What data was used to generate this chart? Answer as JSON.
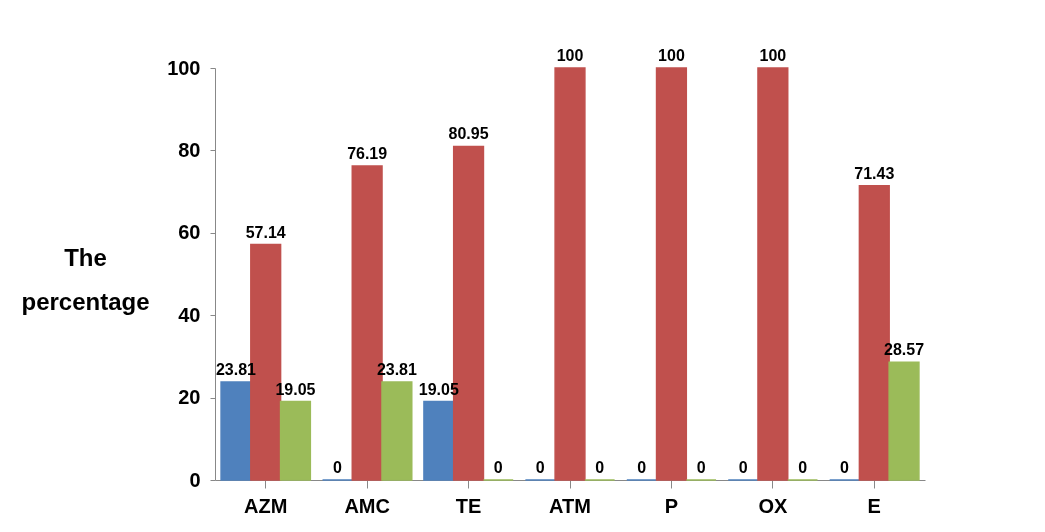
{
  "chart_data": {
    "type": "bar",
    "ylabel": "The percentage",
    "categories": [
      "AZM",
      "AMC",
      "TE",
      "ATM",
      "P",
      "OX",
      "E"
    ],
    "series": [
      {
        "color": "#4f81bd",
        "values": [
          23.81,
          0,
          19.05,
          0,
          0,
          0,
          0
        ]
      },
      {
        "color": "#c0504d",
        "values": [
          57.14,
          76.19,
          80.95,
          100,
          100,
          100,
          71.43
        ]
      },
      {
        "color": "#9bbb59",
        "values": [
          19.05,
          23.81,
          0,
          0,
          0,
          0,
          28.57
        ]
      }
    ],
    "ylim": [
      0,
      100
    ],
    "yticks": [
      0,
      20,
      40,
      60,
      80,
      100
    ],
    "data_labels": true,
    "grid": false
  }
}
